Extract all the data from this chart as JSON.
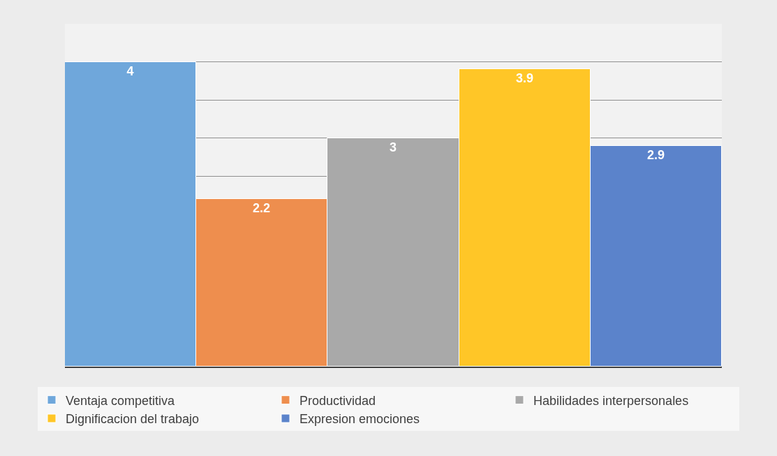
{
  "chart_data": {
    "type": "bar",
    "categories": [
      null
    ],
    "series": [
      {
        "name": "Ventaja competitiva",
        "color": "#6fa7db",
        "values": [
          4
        ]
      },
      {
        "name": "Productividad",
        "color": "#ee8e4e",
        "values": [
          2.2
        ]
      },
      {
        "name": "Habilidades interpersonales",
        "color": "#a9a9a9",
        "values": [
          3
        ]
      },
      {
        "name": "Dignificacion del trabajo",
        "color": "#ffc627",
        "values": [
          3.9
        ]
      },
      {
        "name": "Expresion emociones",
        "color": "#5b83cb",
        "values": [
          2.9
        ]
      }
    ],
    "ylim": [
      0,
      4.5
    ],
    "grid": "y",
    "legend": "bottom",
    "tick_labels": false,
    "data_labels": true
  }
}
